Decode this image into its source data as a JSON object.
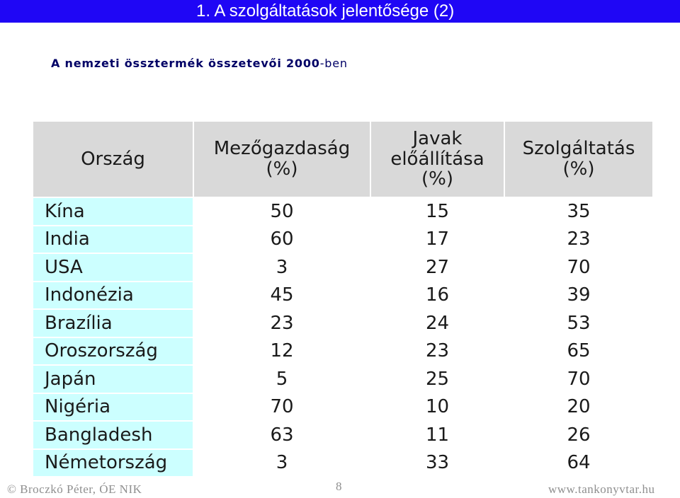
{
  "title": "1. A szolgáltatások jelentősége (2)",
  "subtitle": {
    "main": "A nemzeti össztermék összetevői 2000",
    "suffix": "-ben"
  },
  "table": {
    "headers": [
      "Ország",
      "Mezőgazdaság (%)",
      "Javak előállítása (%)",
      "Szolgáltatás (%)"
    ],
    "rows": [
      [
        "Kína",
        "50",
        "15",
        "35"
      ],
      [
        "India",
        "60",
        "17",
        "23"
      ],
      [
        "USA",
        "3",
        "27",
        "70"
      ],
      [
        "Indonézia",
        "45",
        "16",
        "39"
      ],
      [
        "Brazília",
        "23",
        "24",
        "53"
      ],
      [
        "Oroszország",
        "12",
        "23",
        "65"
      ],
      [
        "Japán",
        "5",
        "25",
        "70"
      ],
      [
        "Nigéria",
        "70",
        "10",
        "20"
      ],
      [
        "Bangladesh",
        "63",
        "11",
        "26"
      ],
      [
        "Németország",
        "3",
        "33",
        "64"
      ]
    ]
  },
  "footer": {
    "author": "© Broczkó Péter, ÓE NIK",
    "page": "8",
    "site": "www.tankonyvtar.hu"
  },
  "colors": {
    "title_bar": "#1f06f5",
    "header_bg": "#d9d9d9",
    "country_bg": "#ccffff",
    "subtitle": "#000066"
  }
}
